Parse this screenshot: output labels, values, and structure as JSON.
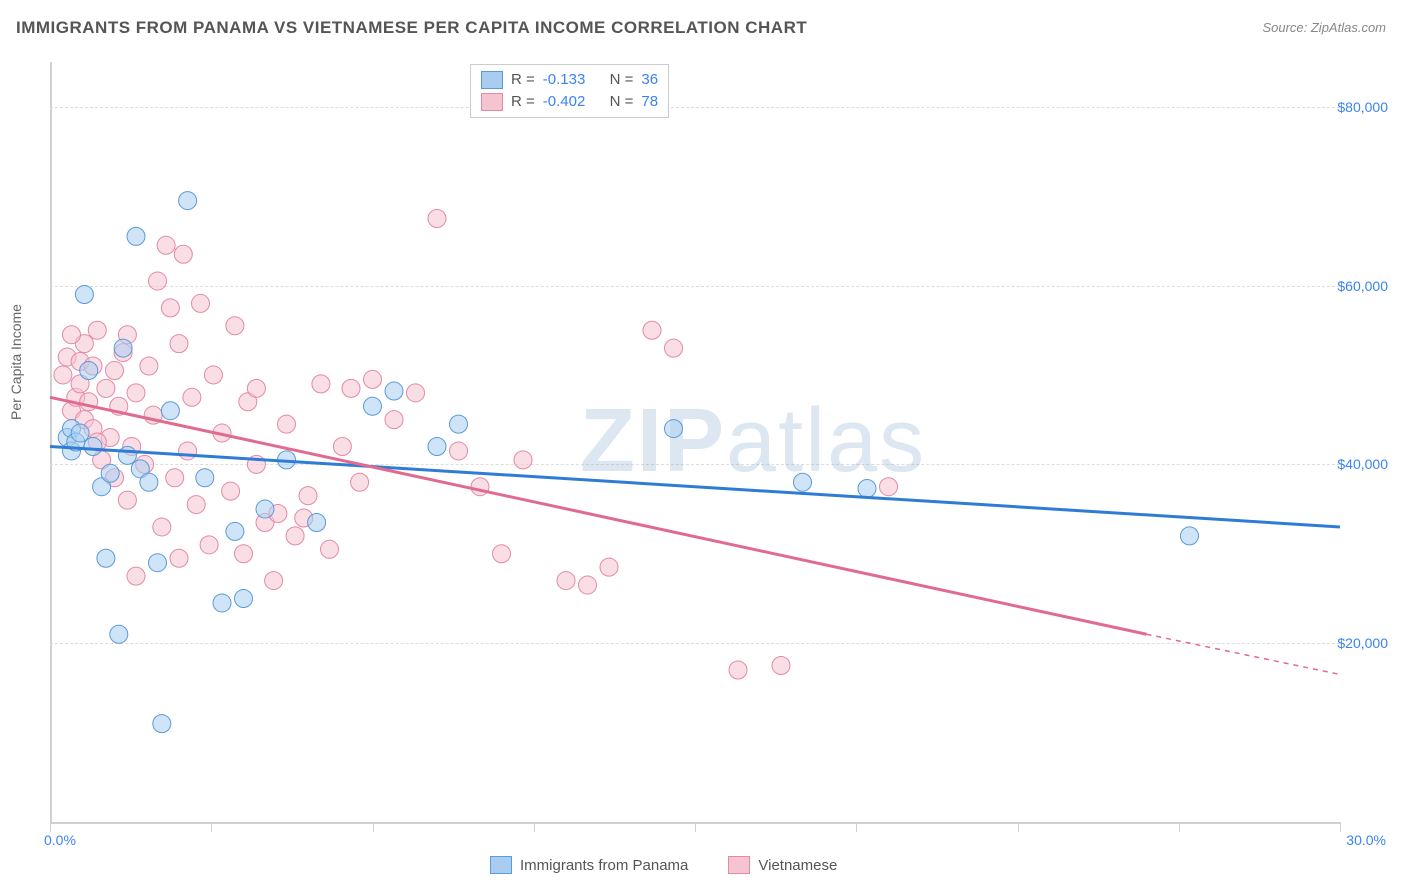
{
  "title": "IMMIGRANTS FROM PANAMA VS VIETNAMESE PER CAPITA INCOME CORRELATION CHART",
  "source": "Source: ZipAtlas.com",
  "watermark_prefix": "ZIP",
  "watermark_suffix": "atlas",
  "y_axis_label": "Per Capita Income",
  "chart": {
    "type": "scatter",
    "background_color": "#ffffff",
    "grid_color": "#dddddd",
    "axis_color": "#d0d0d0",
    "xlim": [
      0,
      30
    ],
    "ylim": [
      0,
      85000
    ],
    "x_ticks": [
      0,
      3.75,
      7.5,
      11.25,
      15,
      18.75,
      22.5,
      26.25,
      30
    ],
    "x_tick_labels_shown": {
      "0": "0.0%",
      "30": "30.0%"
    },
    "y_gridlines": [
      20000,
      40000,
      60000,
      80000
    ],
    "y_tick_labels": {
      "20000": "$20,000",
      "40000": "$40,000",
      "60000": "$60,000",
      "80000": "$80,000"
    },
    "tick_label_color": "#3b82f6",
    "marker_radius": 9,
    "marker_opacity": 0.55,
    "series": [
      {
        "name": "Immigrants from Panama",
        "color_fill": "#a9cdf0",
        "color_stroke": "#5a9bd8",
        "line_color": "#2f7cd6",
        "R": "-0.133",
        "N": "36",
        "regression": {
          "x1": 0,
          "y1": 42000,
          "x2": 30,
          "y2": 33000
        },
        "points": [
          [
            0.4,
            43000
          ],
          [
            0.5,
            41500
          ],
          [
            0.5,
            44000
          ],
          [
            0.6,
            42500
          ],
          [
            0.7,
            43500
          ],
          [
            0.8,
            59000
          ],
          [
            0.9,
            50500
          ],
          [
            1.2,
            37500
          ],
          [
            1.3,
            29500
          ],
          [
            1.4,
            39000
          ],
          [
            1.6,
            21000
          ],
          [
            1.7,
            53000
          ],
          [
            2.0,
            65500
          ],
          [
            2.1,
            39500
          ],
          [
            2.3,
            38000
          ],
          [
            2.5,
            29000
          ],
          [
            2.6,
            11000
          ],
          [
            2.8,
            46000
          ],
          [
            3.2,
            69500
          ],
          [
            3.6,
            38500
          ],
          [
            4.0,
            24500
          ],
          [
            4.3,
            32500
          ],
          [
            4.5,
            25000
          ],
          [
            5.0,
            35000
          ],
          [
            5.5,
            40500
          ],
          [
            6.2,
            33500
          ],
          [
            7.5,
            46500
          ],
          [
            8.0,
            48200
          ],
          [
            9.0,
            42000
          ],
          [
            9.5,
            44500
          ],
          [
            14.5,
            44000
          ],
          [
            17.5,
            38000
          ],
          [
            19.0,
            37300
          ],
          [
            26.5,
            32000
          ],
          [
            1.0,
            42000
          ],
          [
            1.8,
            41000
          ]
        ]
      },
      {
        "name": "Vietnamese",
        "color_fill": "#f6c3d1",
        "color_stroke": "#e38aa5",
        "line_color": "#e16b8f",
        "R": "-0.402",
        "N": "78",
        "regression": {
          "x1": 0,
          "y1": 47500,
          "x2": 25.5,
          "y2": 21000
        },
        "regression_dashed_ext": {
          "x1": 25.5,
          "y1": 21000,
          "x2": 30,
          "y2": 16500
        },
        "points": [
          [
            0.3,
            50000
          ],
          [
            0.4,
            52000
          ],
          [
            0.5,
            46000
          ],
          [
            0.6,
            47500
          ],
          [
            0.7,
            49000
          ],
          [
            0.7,
            51500
          ],
          [
            0.8,
            53500
          ],
          [
            0.8,
            45000
          ],
          [
            0.9,
            47000
          ],
          [
            1.0,
            51000
          ],
          [
            1.0,
            44000
          ],
          [
            1.1,
            55000
          ],
          [
            1.2,
            40500
          ],
          [
            1.3,
            48500
          ],
          [
            1.4,
            43000
          ],
          [
            1.5,
            50500
          ],
          [
            1.5,
            38500
          ],
          [
            1.6,
            46500
          ],
          [
            1.7,
            52500
          ],
          [
            1.8,
            54500
          ],
          [
            1.8,
            36000
          ],
          [
            1.9,
            42000
          ],
          [
            2.0,
            48000
          ],
          [
            2.0,
            27500
          ],
          [
            2.2,
            40000
          ],
          [
            2.3,
            51000
          ],
          [
            2.4,
            45500
          ],
          [
            2.5,
            60500
          ],
          [
            2.6,
            33000
          ],
          [
            2.7,
            64500
          ],
          [
            2.8,
            57500
          ],
          [
            2.9,
            38500
          ],
          [
            3.0,
            53500
          ],
          [
            3.1,
            63500
          ],
          [
            3.2,
            41500
          ],
          [
            3.3,
            47500
          ],
          [
            3.4,
            35500
          ],
          [
            3.5,
            58000
          ],
          [
            3.7,
            31000
          ],
          [
            3.8,
            50000
          ],
          [
            4.0,
            43500
          ],
          [
            4.2,
            37000
          ],
          [
            4.3,
            55500
          ],
          [
            4.5,
            30000
          ],
          [
            4.6,
            47000
          ],
          [
            4.8,
            40000
          ],
          [
            5.0,
            33500
          ],
          [
            5.2,
            27000
          ],
          [
            5.3,
            34500
          ],
          [
            5.5,
            44500
          ],
          [
            5.7,
            32000
          ],
          [
            5.9,
            34000
          ],
          [
            6.0,
            36500
          ],
          [
            6.3,
            49000
          ],
          [
            6.5,
            30500
          ],
          [
            6.8,
            42000
          ],
          [
            7.0,
            48500
          ],
          [
            7.2,
            38000
          ],
          [
            7.5,
            49500
          ],
          [
            8.0,
            45000
          ],
          [
            8.5,
            48000
          ],
          [
            9.0,
            67500
          ],
          [
            9.5,
            41500
          ],
          [
            10.0,
            37500
          ],
          [
            10.5,
            30000
          ],
          [
            11.0,
            40500
          ],
          [
            12.0,
            27000
          ],
          [
            12.5,
            26500
          ],
          [
            13.0,
            28500
          ],
          [
            14.0,
            55000
          ],
          [
            14.5,
            53000
          ],
          [
            16.0,
            17000
          ],
          [
            17.0,
            17500
          ],
          [
            19.5,
            37500
          ],
          [
            0.5,
            54500
          ],
          [
            1.1,
            42500
          ],
          [
            3.0,
            29500
          ],
          [
            4.8,
            48500
          ]
        ]
      }
    ]
  },
  "legend_top": {
    "R_label": "R =",
    "N_label": "N ="
  },
  "legend_bottom": {
    "label_panama": "Immigrants from Panama",
    "label_vietnamese": "Vietnamese"
  }
}
